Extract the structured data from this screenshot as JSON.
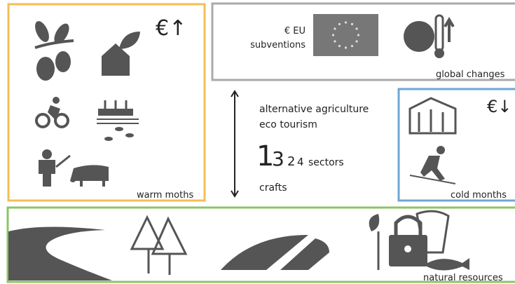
{
  "warm_box": {
    "currency_trend": "€↑",
    "label": "warm moths"
  },
  "eu_box": {
    "subsidy_lines": [
      "€ EU",
      "subventions"
    ],
    "label": "global changes"
  },
  "center": {
    "lines": [
      "alternative agriculture",
      "eco tourism"
    ],
    "sectors": [
      "1",
      "3",
      "2",
      "4"
    ],
    "sectors_label": "sectors",
    "bottom": "crafts"
  },
  "cold_box": {
    "currency_trend": "€↓",
    "label": "cold months"
  },
  "resources_box": {
    "label": "natural resources"
  }
}
